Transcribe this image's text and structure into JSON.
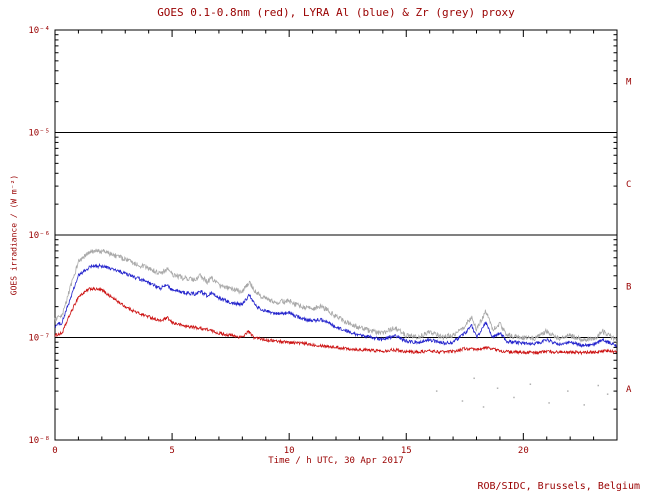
{
  "chart_data": {
    "type": "line",
    "title": "GOES 0.1-0.8nm (red), LYRA Al (blue) & Zr (grey) proxy",
    "xlabel": "Time / h UTC, 30 Apr 2017",
    "ylabel": "GOES irradiance / (W m⁻²)",
    "x_range": [
      0,
      24
    ],
    "x_major_ticks": [
      0,
      5,
      10,
      15,
      20
    ],
    "x_minor_step": 1,
    "y_log_range": [
      -8,
      -4
    ],
    "y_scale": "log",
    "y_tick_exponents": [
      -8,
      -7,
      -6,
      -5,
      -4
    ],
    "y_tick_labels": [
      "10⁻⁸",
      "10⁻⁷",
      "10⁻⁶",
      "10⁻⁵",
      "10⁻⁴"
    ],
    "hlines": [
      1e-07,
      1e-06,
      1e-05
    ],
    "flare_class_labels": [
      {
        "label": "M",
        "log_center": -4.5
      },
      {
        "label": "C",
        "log_center": -5.5
      },
      {
        "label": "B",
        "log_center": -6.5
      },
      {
        "label": "A",
        "log_center": -7.5
      }
    ],
    "grid": false,
    "legend_position": "in-title",
    "series": [
      {
        "name": "GOES 0.1-0.8nm",
        "color": "#cc1111",
        "noise": 0.03,
        "points": [
          [
            0,
            1.05e-07
          ],
          [
            0.3,
            1.1e-07
          ],
          [
            0.6,
            1.6e-07
          ],
          [
            1.0,
            2.5e-07
          ],
          [
            1.5,
            3e-07
          ],
          [
            2.0,
            2.9e-07
          ],
          [
            2.5,
            2.4e-07
          ],
          [
            3.0,
            2e-07
          ],
          [
            3.5,
            1.75e-07
          ],
          [
            4.0,
            1.6e-07
          ],
          [
            4.5,
            1.45e-07
          ],
          [
            4.8,
            1.55e-07
          ],
          [
            5.0,
            1.4e-07
          ],
          [
            5.5,
            1.3e-07
          ],
          [
            6.0,
            1.25e-07
          ],
          [
            6.5,
            1.2e-07
          ],
          [
            7.0,
            1.1e-07
          ],
          [
            7.5,
            1.05e-07
          ],
          [
            8.0,
            1e-07
          ],
          [
            8.25,
            1.15e-07
          ],
          [
            8.5,
            1e-07
          ],
          [
            9.0,
            9.5e-08
          ],
          [
            9.5,
            9.2e-08
          ],
          [
            10.0,
            9e-08
          ],
          [
            10.5,
            8.8e-08
          ],
          [
            11.0,
            8.5e-08
          ],
          [
            11.5,
            8.3e-08
          ],
          [
            12.0,
            8e-08
          ],
          [
            12.5,
            7.8e-08
          ],
          [
            13.0,
            7.6e-08
          ],
          [
            13.5,
            7.5e-08
          ],
          [
            14.0,
            7.4e-08
          ],
          [
            14.5,
            7.6e-08
          ],
          [
            15.0,
            7.3e-08
          ],
          [
            15.5,
            7.2e-08
          ],
          [
            16.0,
            7.4e-08
          ],
          [
            16.5,
            7.2e-08
          ],
          [
            17.0,
            7.3e-08
          ],
          [
            17.5,
            7.8e-08
          ],
          [
            18.0,
            7.6e-08
          ],
          [
            18.5,
            8e-08
          ],
          [
            19.0,
            7.4e-08
          ],
          [
            19.5,
            7.2e-08
          ],
          [
            20.0,
            7.2e-08
          ],
          [
            20.5,
            7.1e-08
          ],
          [
            21.0,
            7.3e-08
          ],
          [
            21.5,
            7.2e-08
          ],
          [
            22.0,
            7.3e-08
          ],
          [
            22.5,
            7.1e-08
          ],
          [
            23.0,
            7.2e-08
          ],
          [
            23.5,
            7.4e-08
          ],
          [
            24.0,
            7.2e-08
          ]
        ]
      },
      {
        "name": "LYRA Al proxy",
        "color": "#2222cc",
        "noise": 0.035,
        "points": [
          [
            0,
            1.3e-07
          ],
          [
            0.3,
            1.4e-07
          ],
          [
            0.6,
            2.2e-07
          ],
          [
            1.0,
            4e-07
          ],
          [
            1.5,
            4.9e-07
          ],
          [
            2.0,
            5e-07
          ],
          [
            2.5,
            4.6e-07
          ],
          [
            3.0,
            4.2e-07
          ],
          [
            3.5,
            3.8e-07
          ],
          [
            4.0,
            3.4e-07
          ],
          [
            4.5,
            3e-07
          ],
          [
            4.8,
            3.3e-07
          ],
          [
            5.0,
            2.9e-07
          ],
          [
            5.5,
            2.75e-07
          ],
          [
            6.0,
            2.65e-07
          ],
          [
            6.2,
            2.85e-07
          ],
          [
            6.5,
            2.55e-07
          ],
          [
            6.7,
            2.75e-07
          ],
          [
            7.0,
            2.4e-07
          ],
          [
            7.5,
            2.2e-07
          ],
          [
            8.0,
            2.1e-07
          ],
          [
            8.3,
            2.6e-07
          ],
          [
            8.6,
            2e-07
          ],
          [
            9.0,
            1.8e-07
          ],
          [
            9.5,
            1.7e-07
          ],
          [
            10.0,
            1.75e-07
          ],
          [
            10.3,
            1.6e-07
          ],
          [
            10.7,
            1.5e-07
          ],
          [
            11.0,
            1.45e-07
          ],
          [
            11.3,
            1.5e-07
          ],
          [
            11.6,
            1.45e-07
          ],
          [
            12.0,
            1.25e-07
          ],
          [
            12.5,
            1.15e-07
          ],
          [
            13.0,
            1.05e-07
          ],
          [
            13.5,
            1e-07
          ],
          [
            14.0,
            9.5e-08
          ],
          [
            14.5,
            1.05e-07
          ],
          [
            15.0,
            9.2e-08
          ],
          [
            15.5,
            9e-08
          ],
          [
            16.0,
            9.5e-08
          ],
          [
            16.5,
            8.8e-08
          ],
          [
            17.0,
            9e-08
          ],
          [
            17.5,
            1.1e-07
          ],
          [
            17.8,
            1.3e-07
          ],
          [
            18.0,
            1e-07
          ],
          [
            18.4,
            1.4e-07
          ],
          [
            18.7,
            1e-07
          ],
          [
            19.0,
            1.1e-07
          ],
          [
            19.3,
            9.2e-08
          ],
          [
            20.0,
            8.8e-08
          ],
          [
            20.5,
            8.6e-08
          ],
          [
            21.0,
            9.5e-08
          ],
          [
            21.5,
            8.6e-08
          ],
          [
            22.0,
            9e-08
          ],
          [
            22.5,
            8.4e-08
          ],
          [
            23.0,
            8.5e-08
          ],
          [
            23.4,
            9.5e-08
          ],
          [
            24.0,
            8.2e-08
          ]
        ]
      },
      {
        "name": "LYRA Zr proxy",
        "color": "#a8a8a8",
        "noise": 0.05,
        "points": [
          [
            0,
            1.5e-07
          ],
          [
            0.3,
            1.6e-07
          ],
          [
            0.6,
            2.8e-07
          ],
          [
            1.0,
            5.5e-07
          ],
          [
            1.5,
            6.8e-07
          ],
          [
            2.0,
            7e-07
          ],
          [
            2.5,
            6.4e-07
          ],
          [
            3.0,
            5.8e-07
          ],
          [
            3.5,
            5.2e-07
          ],
          [
            4.0,
            4.7e-07
          ],
          [
            4.5,
            4.2e-07
          ],
          [
            4.8,
            4.7e-07
          ],
          [
            5.0,
            4.1e-07
          ],
          [
            5.5,
            3.8e-07
          ],
          [
            6.0,
            3.6e-07
          ],
          [
            6.2,
            4e-07
          ],
          [
            6.5,
            3.5e-07
          ],
          [
            6.7,
            3.8e-07
          ],
          [
            7.0,
            3.2e-07
          ],
          [
            7.5,
            3e-07
          ],
          [
            8.0,
            2.8e-07
          ],
          [
            8.3,
            3.5e-07
          ],
          [
            8.6,
            2.7e-07
          ],
          [
            9.0,
            2.4e-07
          ],
          [
            9.5,
            2.2e-07
          ],
          [
            10.0,
            2.3e-07
          ],
          [
            10.3,
            2.1e-07
          ],
          [
            10.7,
            1.95e-07
          ],
          [
            11.0,
            1.9e-07
          ],
          [
            11.3,
            2e-07
          ],
          [
            11.6,
            1.9e-07
          ],
          [
            12.0,
            1.6e-07
          ],
          [
            12.5,
            1.4e-07
          ],
          [
            13.0,
            1.25e-07
          ],
          [
            13.5,
            1.15e-07
          ],
          [
            14.0,
            1.1e-07
          ],
          [
            14.5,
            1.25e-07
          ],
          [
            15.0,
            1.05e-07
          ],
          [
            15.5,
            1e-07
          ],
          [
            16.0,
            1.15e-07
          ],
          [
            16.5,
            1e-07
          ],
          [
            17.0,
            1.05e-07
          ],
          [
            17.5,
            1.3e-07
          ],
          [
            17.8,
            1.6e-07
          ],
          [
            18.0,
            1.2e-07
          ],
          [
            18.4,
            1.8e-07
          ],
          [
            18.7,
            1.2e-07
          ],
          [
            19.0,
            1.35e-07
          ],
          [
            19.3,
            1.05e-07
          ],
          [
            20.0,
            1e-07
          ],
          [
            20.5,
            9.8e-08
          ],
          [
            21.0,
            1.15e-07
          ],
          [
            21.5,
            9.8e-08
          ],
          [
            22.0,
            1.05e-07
          ],
          [
            22.5,
            9.5e-08
          ],
          [
            23.0,
            9.6e-08
          ],
          [
            23.4,
            1.15e-07
          ],
          [
            24.0,
            9.2e-08
          ]
        ]
      }
    ],
    "outlier_points": {
      "color": "#b0b0b0",
      "points": [
        [
          16.3,
          3e-08
        ],
        [
          17.4,
          2.4e-08
        ],
        [
          17.9,
          4e-08
        ],
        [
          18.3,
          2.1e-08
        ],
        [
          18.9,
          3.2e-08
        ],
        [
          19.6,
          2.6e-08
        ],
        [
          20.3,
          3.5e-08
        ],
        [
          21.1,
          2.3e-08
        ],
        [
          21.9,
          3e-08
        ],
        [
          22.6,
          2.2e-08
        ],
        [
          23.2,
          3.4e-08
        ],
        [
          23.6,
          2.8e-08
        ]
      ]
    }
  },
  "footer": {
    "credit": "ROB/SIDC, Brussels, Belgium"
  },
  "colors": {
    "text": "#990000",
    "frame": "#000000",
    "background": "#ffffff"
  }
}
